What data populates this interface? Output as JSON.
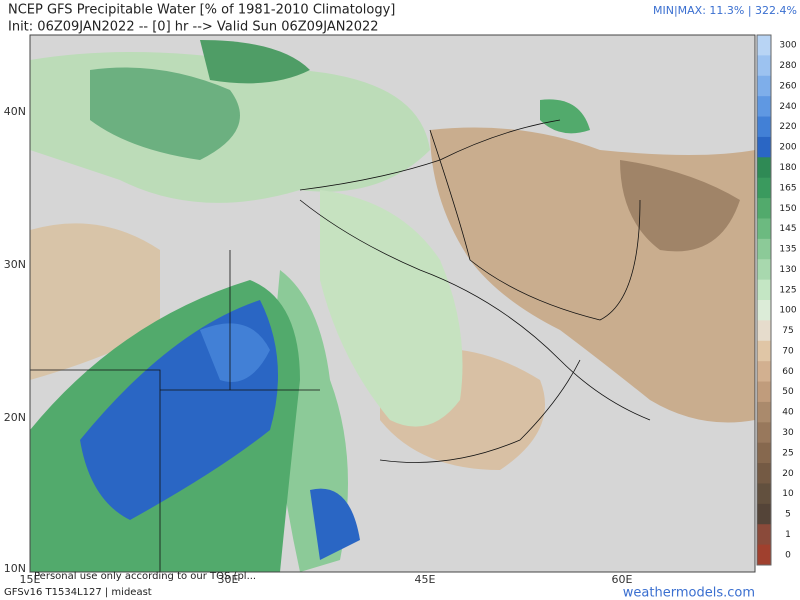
{
  "header": {
    "title": "NCEP GFS Precipitable Water [% of 1981-2010 Climatology]",
    "subtitle": "Init: 06Z09JAN2022 -- [0] hr --> Valid Sun 06Z09JAN2022",
    "minmax": "MIN|MAX: 11.3% | 322.4%"
  },
  "map": {
    "lat_labels": [
      "40N",
      "30N",
      "20N",
      "10N"
    ],
    "lon_labels": [
      "15E",
      "30E",
      "45E",
      "60E"
    ]
  },
  "colorbar": {
    "levels": [
      300,
      280,
      260,
      240,
      220,
      200,
      180,
      165,
      150,
      145,
      135,
      130,
      125,
      100,
      75,
      70,
      60,
      50,
      40,
      30,
      25,
      20,
      10,
      5,
      1,
      0
    ],
    "colors": [
      "#b8d4f4",
      "#9cc2f0",
      "#7eaeea",
      "#5f98e2",
      "#4280d6",
      "#2a66c4",
      "#2f8a55",
      "#3a9a5e",
      "#52aa6c",
      "#6cba80",
      "#8cca98",
      "#a8d8ae",
      "#c4e6c4",
      "#dcecd8",
      "#e6dccc",
      "#e0c6a6",
      "#d2b090",
      "#c09c7c",
      "#aa8a6c",
      "#98785c",
      "#86684e",
      "#745a44",
      "#62503e",
      "#544438",
      "#8a4a3a",
      "#a0402e"
    ]
  },
  "footer": {
    "notice": "Personal use only according to our TOS (pl...",
    "model": "GFSv16 T1534L127 | mideast",
    "site": "weathermodels.com"
  }
}
